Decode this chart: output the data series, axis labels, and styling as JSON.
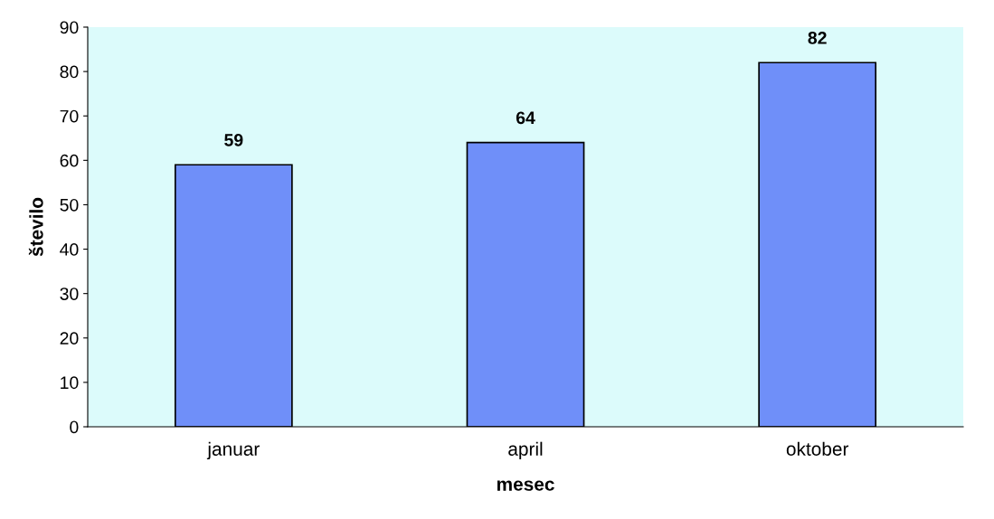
{
  "chart_data": {
    "type": "bar",
    "xlabel": "mesec",
    "ylabel": "število",
    "categories": [
      "januar",
      "april",
      "oktober"
    ],
    "values": [
      59,
      64,
      82
    ],
    "color": "#6f8ff9",
    "ylim": [
      0,
      90
    ],
    "yticks": [
      0,
      10,
      20,
      30,
      40,
      50,
      60,
      70,
      80,
      90
    ],
    "data_labels": true,
    "grid": false
  }
}
